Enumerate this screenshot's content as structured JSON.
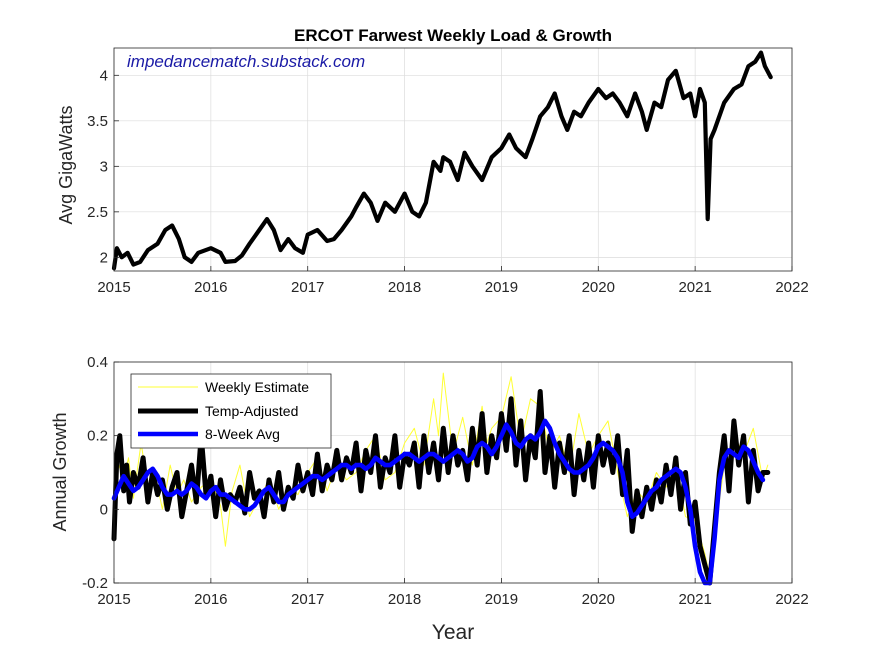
{
  "chart_data": [
    {
      "type": "line",
      "title": "ERCOT Farwest Weekly Load & Growth",
      "ylabel": "Avg GigaWatts",
      "xlabel": "",
      "annotation": "impedancematch.substack.com",
      "xlim": [
        2015,
        2022
      ],
      "ylim": [
        1.85,
        4.3
      ],
      "xticks": [
        "2015",
        "2016",
        "2017",
        "2018",
        "2019",
        "2020",
        "2021",
        "2022"
      ],
      "yticks": [
        "2",
        "2.5",
        "3",
        "3.5",
        "4"
      ],
      "grid": true,
      "series": [
        {
          "color": "#000000",
          "x": [
            2015.0,
            2015.03,
            2015.08,
            2015.14,
            2015.2,
            2015.27,
            2015.35,
            2015.45,
            2015.53,
            2015.6,
            2015.67,
            2015.73,
            2015.8,
            2015.87,
            2016.0,
            2016.1,
            2016.15,
            2016.25,
            2016.32,
            2016.4,
            2016.5,
            2016.58,
            2016.65,
            2016.72,
            2016.8,
            2016.87,
            2016.95,
            2017.0,
            2017.1,
            2017.2,
            2017.27,
            2017.35,
            2017.45,
            2017.5,
            2017.58,
            2017.65,
            2017.72,
            2017.8,
            2017.9,
            2018.0,
            2018.08,
            2018.15,
            2018.22,
            2018.3,
            2018.37,
            2018.4,
            2018.47,
            2018.55,
            2018.62,
            2018.7,
            2018.8,
            2018.9,
            2019.0,
            2019.08,
            2019.15,
            2019.25,
            2019.32,
            2019.4,
            2019.48,
            2019.55,
            2019.62,
            2019.68,
            2019.75,
            2019.82,
            2019.9,
            2020.0,
            2020.08,
            2020.15,
            2020.22,
            2020.3,
            2020.38,
            2020.45,
            2020.5,
            2020.58,
            2020.65,
            2020.72,
            2020.8,
            2020.88,
            2020.95,
            2021.0,
            2021.05,
            2021.1,
            2021.13,
            2021.16,
            2021.2,
            2021.3,
            2021.4,
            2021.48,
            2021.55,
            2021.62,
            2021.68,
            2021.72,
            2021.78
          ],
          "values": [
            1.88,
            2.1,
            2.0,
            2.05,
            1.92,
            1.95,
            2.08,
            2.15,
            2.3,
            2.35,
            2.2,
            2.0,
            1.95,
            2.05,
            2.1,
            2.05,
            1.95,
            1.96,
            2.02,
            2.15,
            2.3,
            2.42,
            2.3,
            2.08,
            2.2,
            2.1,
            2.05,
            2.25,
            2.3,
            2.18,
            2.2,
            2.3,
            2.45,
            2.55,
            2.7,
            2.6,
            2.4,
            2.6,
            2.5,
            2.7,
            2.5,
            2.45,
            2.6,
            3.05,
            2.95,
            3.1,
            3.05,
            2.85,
            3.15,
            3.0,
            2.85,
            3.1,
            3.2,
            3.35,
            3.2,
            3.1,
            3.3,
            3.55,
            3.65,
            3.8,
            3.55,
            3.4,
            3.6,
            3.55,
            3.7,
            3.85,
            3.75,
            3.8,
            3.7,
            3.55,
            3.8,
            3.6,
            3.4,
            3.7,
            3.65,
            3.95,
            4.05,
            3.75,
            3.8,
            3.55,
            3.85,
            3.7,
            2.42,
            3.3,
            3.4,
            3.7,
            3.85,
            3.9,
            4.1,
            4.15,
            4.25,
            4.1,
            3.98
          ]
        }
      ]
    },
    {
      "type": "line",
      "title": "",
      "ylabel": "Annual Growth",
      "xlabel": "Year",
      "xlim": [
        2015,
        2022
      ],
      "ylim": [
        -0.2,
        0.4
      ],
      "xticks": [
        "2015",
        "2016",
        "2017",
        "2018",
        "2019",
        "2020",
        "2021",
        "2022"
      ],
      "yticks": [
        "-0.2",
        "0",
        "0.2",
        "0.4"
      ],
      "grid": true,
      "legend": "top-left",
      "series": [
        {
          "name": "Weekly Estimate",
          "color": "#ffff33",
          "x": [
            2015.0,
            2015.05,
            2015.1,
            2015.15,
            2015.2,
            2015.28,
            2015.35,
            2015.42,
            2015.5,
            2015.58,
            2015.65,
            2015.72,
            2015.8,
            2015.9,
            2016.0,
            2016.1,
            2016.15,
            2016.22,
            2016.3,
            2016.4,
            2016.5,
            2016.6,
            2016.7,
            2016.8,
            2016.9,
            2017.0,
            2017.1,
            2017.2,
            2017.3,
            2017.4,
            2017.5,
            2017.6,
            2017.7,
            2017.8,
            2017.9,
            2018.0,
            2018.1,
            2018.2,
            2018.3,
            2018.35,
            2018.4,
            2018.5,
            2018.6,
            2018.7,
            2018.8,
            2018.85,
            2018.9,
            2019.0,
            2019.1,
            2019.2,
            2019.3,
            2019.4,
            2019.5,
            2019.6,
            2019.7,
            2019.8,
            2019.9,
            2020.0,
            2020.1,
            2020.2,
            2020.3,
            2020.4,
            2020.5,
            2020.6,
            2020.7,
            2020.8,
            2020.9,
            2021.0,
            2021.1,
            2021.15,
            2021.2,
            2021.3,
            2021.4,
            2021.5,
            2021.6,
            2021.7,
            2021.75
          ],
          "values": [
            0.05,
            0.12,
            0.08,
            0.14,
            0.03,
            0.18,
            0.06,
            0.1,
            0.0,
            0.12,
            0.04,
            0.08,
            0.02,
            0.06,
            0.08,
            0.01,
            -0.1,
            0.05,
            0.12,
            -0.02,
            0.03,
            0.08,
            0.0,
            0.06,
            0.04,
            0.1,
            0.14,
            0.05,
            0.12,
            0.08,
            0.1,
            0.16,
            0.2,
            0.08,
            0.1,
            0.18,
            0.22,
            0.12,
            0.3,
            0.2,
            0.37,
            0.15,
            0.25,
            0.12,
            0.28,
            0.18,
            0.22,
            0.25,
            0.36,
            0.18,
            0.3,
            0.28,
            0.15,
            0.2,
            0.1,
            0.26,
            0.15,
            0.2,
            0.24,
            0.1,
            -0.02,
            0.05,
            0.02,
            0.1,
            0.06,
            0.12,
            -0.02,
            -0.03,
            -0.12,
            -0.18,
            -0.08,
            0.12,
            0.2,
            0.15,
            0.22,
            0.08,
            0.12
          ]
        },
        {
          "name": "Temp-Adjusted",
          "color": "#000000",
          "x": [
            2015.0,
            2015.03,
            2015.06,
            2015.1,
            2015.13,
            2015.16,
            2015.2,
            2015.25,
            2015.3,
            2015.35,
            2015.4,
            2015.45,
            2015.5,
            2015.55,
            2015.6,
            2015.65,
            2015.7,
            2015.75,
            2015.8,
            2015.85,
            2015.9,
            2015.95,
            2016.0,
            2016.05,
            2016.1,
            2016.15,
            2016.2,
            2016.25,
            2016.3,
            2016.35,
            2016.4,
            2016.45,
            2016.5,
            2016.55,
            2016.6,
            2016.65,
            2016.7,
            2016.75,
            2016.8,
            2016.85,
            2016.9,
            2016.95,
            2017.0,
            2017.05,
            2017.1,
            2017.15,
            2017.2,
            2017.25,
            2017.3,
            2017.35,
            2017.4,
            2017.45,
            2017.5,
            2017.55,
            2017.6,
            2017.65,
            2017.7,
            2017.75,
            2017.8,
            2017.85,
            2017.9,
            2017.95,
            2018.0,
            2018.05,
            2018.1,
            2018.15,
            2018.2,
            2018.25,
            2018.3,
            2018.35,
            2018.4,
            2018.45,
            2018.5,
            2018.55,
            2018.6,
            2018.65,
            2018.7,
            2018.75,
            2018.8,
            2018.85,
            2018.9,
            2018.95,
            2019.0,
            2019.05,
            2019.1,
            2019.15,
            2019.2,
            2019.25,
            2019.3,
            2019.35,
            2019.4,
            2019.45,
            2019.5,
            2019.55,
            2019.6,
            2019.65,
            2019.7,
            2019.75,
            2019.8,
            2019.85,
            2019.9,
            2019.95,
            2020.0,
            2020.05,
            2020.1,
            2020.15,
            2020.2,
            2020.25,
            2020.3,
            2020.35,
            2020.4,
            2020.45,
            2020.5,
            2020.55,
            2020.6,
            2020.65,
            2020.7,
            2020.75,
            2020.8,
            2020.85,
            2020.9,
            2020.95,
            2021.0,
            2021.05,
            2021.1,
            2021.15,
            2021.2,
            2021.25,
            2021.3,
            2021.35,
            2021.4,
            2021.45,
            2021.5,
            2021.55,
            2021.6,
            2021.65,
            2021.7,
            2021.75
          ],
          "values": [
            -0.08,
            0.15,
            0.2,
            0.05,
            0.12,
            0.02,
            0.1,
            0.06,
            0.14,
            0.02,
            0.1,
            0.04,
            0.08,
            0.0,
            0.06,
            0.1,
            -0.02,
            0.05,
            0.12,
            0.02,
            0.2,
            0.04,
            0.09,
            -0.02,
            0.08,
            0.0,
            0.04,
            0.02,
            0.06,
            -0.01,
            0.1,
            0.03,
            0.05,
            -0.02,
            0.08,
            0.02,
            0.1,
            0.0,
            0.06,
            0.03,
            0.12,
            0.05,
            0.1,
            0.04,
            0.15,
            0.05,
            0.12,
            0.08,
            0.16,
            0.08,
            0.14,
            0.1,
            0.18,
            0.05,
            0.16,
            0.1,
            0.2,
            0.06,
            0.14,
            0.1,
            0.2,
            0.06,
            0.15,
            0.12,
            0.18,
            0.06,
            0.2,
            0.1,
            0.18,
            0.08,
            0.22,
            0.1,
            0.2,
            0.12,
            0.16,
            0.08,
            0.22,
            0.12,
            0.26,
            0.1,
            0.2,
            0.14,
            0.26,
            0.16,
            0.3,
            0.12,
            0.24,
            0.08,
            0.2,
            0.14,
            0.32,
            0.1,
            0.2,
            0.06,
            0.18,
            0.1,
            0.2,
            0.04,
            0.16,
            0.08,
            0.18,
            0.06,
            0.2,
            0.12,
            0.18,
            0.1,
            0.2,
            0.04,
            0.16,
            -0.06,
            0.05,
            -0.02,
            0.06,
            0.0,
            0.08,
            0.02,
            0.12,
            0.04,
            0.14,
            0.0,
            0.1,
            -0.04,
            0.02,
            -0.1,
            -0.15,
            -0.2,
            -0.05,
            0.1,
            0.2,
            0.05,
            0.24,
            0.12,
            0.2,
            0.02,
            0.16,
            0.05,
            0.1,
            0.1
          ]
        },
        {
          "name": "8-Week Avg",
          "color": "#0000ff",
          "x": [
            2015.0,
            2015.05,
            2015.1,
            2015.15,
            2015.2,
            2015.25,
            2015.3,
            2015.35,
            2015.4,
            2015.45,
            2015.5,
            2015.55,
            2015.6,
            2015.65,
            2015.7,
            2015.75,
            2015.8,
            2015.85,
            2015.9,
            2015.95,
            2016.0,
            2016.05,
            2016.1,
            2016.15,
            2016.2,
            2016.25,
            2016.3,
            2016.35,
            2016.4,
            2016.45,
            2016.5,
            2016.55,
            2016.6,
            2016.65,
            2016.7,
            2016.75,
            2016.8,
            2016.85,
            2016.9,
            2016.95,
            2017.0,
            2017.05,
            2017.1,
            2017.15,
            2017.2,
            2017.25,
            2017.3,
            2017.35,
            2017.4,
            2017.45,
            2017.5,
            2017.55,
            2017.6,
            2017.65,
            2017.7,
            2017.75,
            2017.8,
            2017.85,
            2017.9,
            2017.95,
            2018.0,
            2018.05,
            2018.1,
            2018.15,
            2018.2,
            2018.25,
            2018.3,
            2018.35,
            2018.4,
            2018.45,
            2018.5,
            2018.55,
            2018.6,
            2018.65,
            2018.7,
            2018.75,
            2018.8,
            2018.85,
            2018.9,
            2018.95,
            2019.0,
            2019.05,
            2019.1,
            2019.15,
            2019.2,
            2019.25,
            2019.3,
            2019.35,
            2019.4,
            2019.45,
            2019.5,
            2019.55,
            2019.6,
            2019.65,
            2019.7,
            2019.75,
            2019.8,
            2019.85,
            2019.9,
            2019.95,
            2020.0,
            2020.05,
            2020.1,
            2020.15,
            2020.2,
            2020.25,
            2020.3,
            2020.35,
            2020.4,
            2020.45,
            2020.5,
            2020.55,
            2020.6,
            2020.65,
            2020.7,
            2020.75,
            2020.8,
            2020.85,
            2020.9,
            2020.95,
            2021.0,
            2021.05,
            2021.1,
            2021.15,
            2021.2,
            2021.25,
            2021.3,
            2021.35,
            2021.4,
            2021.45,
            2021.5,
            2021.55,
            2021.6,
            2021.65,
            2021.7
          ],
          "values": [
            0.03,
            0.06,
            0.09,
            0.07,
            0.05,
            0.06,
            0.08,
            0.1,
            0.11,
            0.09,
            0.06,
            0.04,
            0.04,
            0.05,
            0.04,
            0.05,
            0.07,
            0.06,
            0.04,
            0.03,
            0.05,
            0.06,
            0.04,
            0.04,
            0.03,
            0.02,
            0.01,
            0.0,
            0.0,
            0.01,
            0.03,
            0.05,
            0.06,
            0.04,
            0.02,
            0.02,
            0.04,
            0.05,
            0.06,
            0.07,
            0.08,
            0.09,
            0.09,
            0.08,
            0.09,
            0.1,
            0.11,
            0.12,
            0.12,
            0.11,
            0.12,
            0.12,
            0.11,
            0.12,
            0.14,
            0.13,
            0.12,
            0.12,
            0.13,
            0.14,
            0.15,
            0.15,
            0.14,
            0.13,
            0.14,
            0.15,
            0.15,
            0.14,
            0.13,
            0.14,
            0.15,
            0.16,
            0.15,
            0.13,
            0.14,
            0.17,
            0.18,
            0.17,
            0.15,
            0.17,
            0.2,
            0.23,
            0.21,
            0.18,
            0.17,
            0.19,
            0.2,
            0.19,
            0.21,
            0.24,
            0.22,
            0.18,
            0.15,
            0.13,
            0.11,
            0.1,
            0.1,
            0.11,
            0.12,
            0.14,
            0.17,
            0.18,
            0.17,
            0.16,
            0.14,
            0.1,
            0.02,
            -0.02,
            -0.01,
            0.01,
            0.03,
            0.05,
            0.06,
            0.08,
            0.09,
            0.1,
            0.11,
            0.1,
            0.06,
            0.0,
            -0.1,
            -0.17,
            -0.2,
            -0.2,
            -0.08,
            0.08,
            0.14,
            0.16,
            0.15,
            0.14,
            0.17,
            0.16,
            0.13,
            0.1,
            0.08
          ]
        }
      ]
    }
  ]
}
